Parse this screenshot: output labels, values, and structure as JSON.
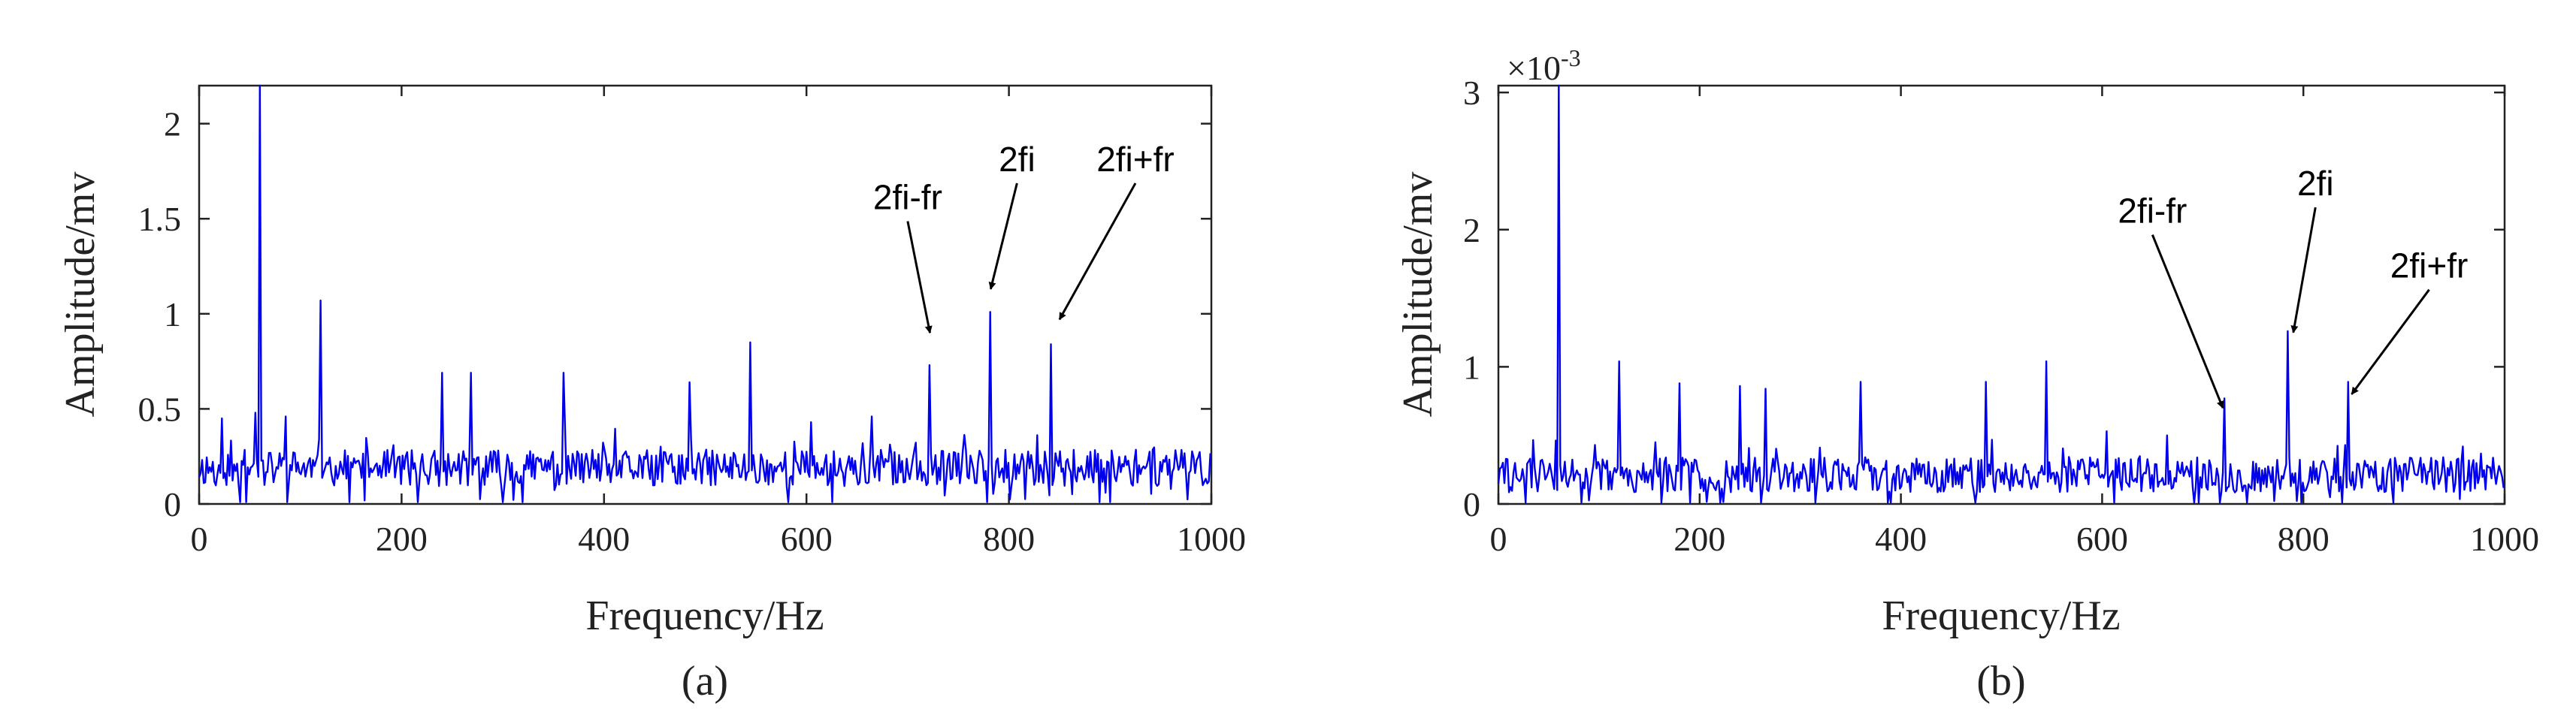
{
  "chart_data": [
    {
      "type": "line",
      "panel_label": "(a)",
      "xlabel": "Frequency/Hz",
      "ylabel": "Amplitude/mv",
      "xlim": [
        0,
        1000
      ],
      "ylim": [
        0,
        2.2
      ],
      "xticks": [
        0,
        200,
        400,
        600,
        800,
        1000
      ],
      "xtick_labels": [
        "0",
        "200",
        "400",
        "600",
        "800",
        "1000"
      ],
      "yticks": [
        0,
        0.5,
        1,
        1.5,
        2
      ],
      "ytick_labels": [
        "0",
        "0.5",
        "1",
        "1.5",
        "2"
      ],
      "exponent_label": "",
      "color": "#0000ee",
      "noise": {
        "base": 0.18,
        "amp": 0.12,
        "seed": 11
      },
      "peaks": [
        {
          "x": 60,
          "y": 2.2
        },
        {
          "x": 120,
          "y": 1.07
        },
        {
          "x": 22,
          "y": 0.45
        },
        {
          "x": 55,
          "y": 0.48
        },
        {
          "x": 85,
          "y": 0.46
        },
        {
          "x": 240,
          "y": 0.69
        },
        {
          "x": 268,
          "y": 0.69
        },
        {
          "x": 360,
          "y": 0.69
        },
        {
          "x": 485,
          "y": 0.64
        },
        {
          "x": 545,
          "y": 0.85
        },
        {
          "x": 605,
          "y": 0.43
        },
        {
          "x": 665,
          "y": 0.46
        },
        {
          "x": 722,
          "y": 0.73
        },
        {
          "x": 782,
          "y": 1.01
        },
        {
          "x": 842,
          "y": 0.84
        }
      ],
      "annotations": [
        {
          "text": "2fi-fr",
          "target_x": 722,
          "target_y": 0.9,
          "label_x": 700,
          "label_y": 1.55
        },
        {
          "text": "2fi",
          "target_x": 782,
          "target_y": 1.13,
          "label_x": 808,
          "label_y": 1.75
        },
        {
          "text": "2fi+fr",
          "target_x": 850,
          "target_y": 0.97,
          "label_x": 925,
          "label_y": 1.75
        }
      ]
    },
    {
      "type": "line",
      "panel_label": "(b)",
      "xlabel": "Frequency/Hz",
      "ylabel": "Amplitude/mv",
      "xlim": [
        0,
        1000
      ],
      "ylim": [
        0,
        3.05
      ],
      "xticks": [
        0,
        200,
        400,
        600,
        800,
        1000
      ],
      "xtick_labels": [
        "0",
        "200",
        "400",
        "600",
        "800",
        "1000"
      ],
      "yticks": [
        0,
        1,
        2,
        3
      ],
      "ytick_labels": [
        "0",
        "1",
        "2",
        "3"
      ],
      "exponent_label": "×10",
      "exponent_power": "-3",
      "color": "#0000ee",
      "noise": {
        "base": 0.2,
        "amp": 0.16,
        "seed": 29
      },
      "peaks": [
        {
          "x": 60,
          "y": 3.05
        },
        {
          "x": 120,
          "y": 1.04
        },
        {
          "x": 180,
          "y": 0.88
        },
        {
          "x": 240,
          "y": 0.86
        },
        {
          "x": 265,
          "y": 0.84
        },
        {
          "x": 360,
          "y": 0.89
        },
        {
          "x": 485,
          "y": 0.89
        },
        {
          "x": 545,
          "y": 1.04
        },
        {
          "x": 605,
          "y": 0.53
        },
        {
          "x": 665,
          "y": 0.5
        },
        {
          "x": 722,
          "y": 0.77
        },
        {
          "x": 785,
          "y": 1.26
        },
        {
          "x": 845,
          "y": 0.89
        }
      ],
      "annotations": [
        {
          "text": "2fi-fr",
          "target_x": 720,
          "target_y": 0.7,
          "label_x": 650,
          "label_y": 2.05
        },
        {
          "text": "2fi",
          "target_x": 790,
          "target_y": 1.25,
          "label_x": 812,
          "label_y": 2.25
        },
        {
          "text": "2fi+fr",
          "target_x": 848,
          "target_y": 0.8,
          "label_x": 925,
          "label_y": 1.65
        }
      ]
    }
  ]
}
